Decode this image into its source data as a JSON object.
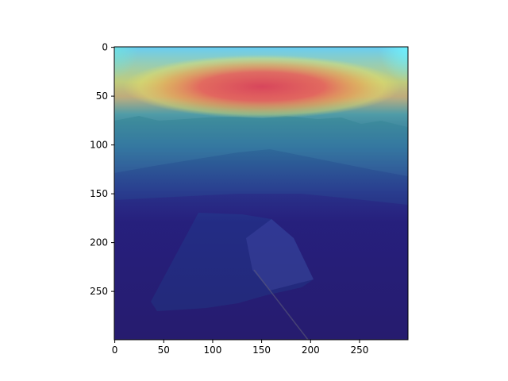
{
  "chart_data": {
    "type": "heatmap",
    "description_free": true,
    "title": "",
    "xlabel": "",
    "ylabel": "",
    "xlim": [
      0,
      299
    ],
    "ylim": [
      299,
      0
    ],
    "x_ticks": [
      0,
      50,
      100,
      150,
      200,
      250
    ],
    "y_ticks": [
      0,
      50,
      100,
      150,
      200,
      250
    ],
    "grid": false,
    "legend": "none",
    "overlay": {
      "colormap": "jet",
      "hotspot": {
        "x_center": 155,
        "y_center": 42,
        "x_extent": 120,
        "y_extent": 14
      }
    }
  }
}
